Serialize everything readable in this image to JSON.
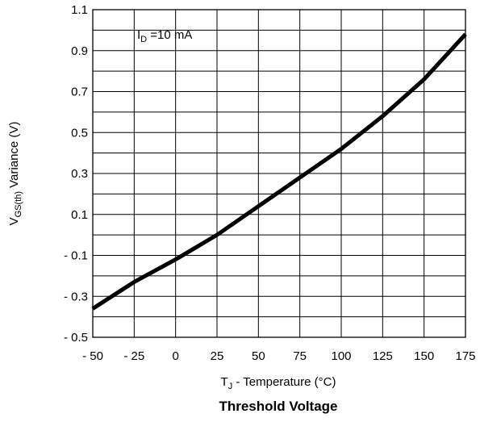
{
  "chart_data": {
    "type": "line",
    "title": "Threshold Voltage",
    "annotation": {
      "prefix": "I",
      "subscript": "D",
      "suffix": " =10 mA"
    },
    "xlabel": {
      "prefix": "T",
      "subscript": "J",
      "suffix": " - Temperature (°C)"
    },
    "ylabel": {
      "prefix": "V",
      "subscript": "GS(th)",
      "suffix": " Variance (V)"
    },
    "xlim": [
      -50,
      175
    ],
    "ylim": [
      -0.5,
      1.1
    ],
    "grid": true,
    "x_ticks": [
      -50,
      -25,
      0,
      25,
      50,
      75,
      100,
      125,
      150,
      175
    ],
    "x_tick_labels": [
      "- 50",
      "- 25",
      "0",
      "25",
      "50",
      "75",
      "100",
      "125",
      "150",
      "175"
    ],
    "y_ticks": [
      -0.5,
      -0.3,
      -0.1,
      0.1,
      0.3,
      0.5,
      0.7,
      0.9,
      1.1
    ],
    "y_tick_labels": [
      "- 0.5",
      "- 0.3",
      "- 0.1",
      "0.1",
      "0.3",
      "0.5",
      "0.7",
      "0.9",
      "1.1"
    ],
    "y_minor_step": 0.1,
    "series": [
      {
        "color": "#000000",
        "x": [
          -50,
          -25,
          0,
          25,
          50,
          75,
          100,
          125,
          150,
          175
        ],
        "y": [
          -0.36,
          -0.23,
          -0.12,
          0.0,
          0.14,
          0.28,
          0.42,
          0.58,
          0.76,
          0.98
        ]
      }
    ]
  }
}
